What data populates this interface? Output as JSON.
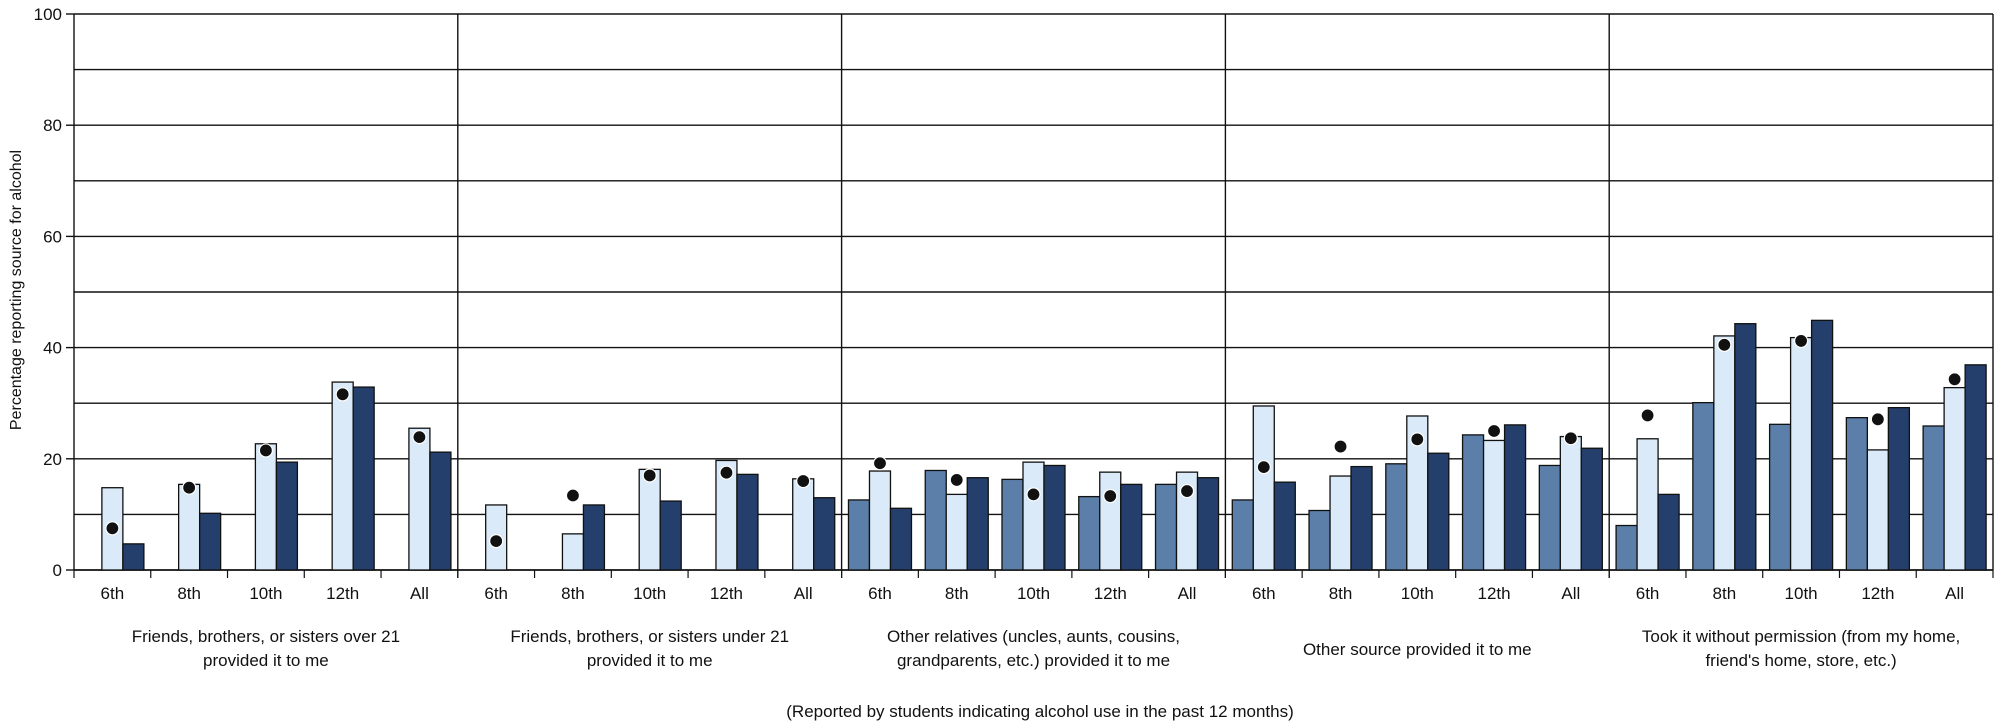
{
  "chart_data": {
    "type": "bar",
    "ylabel": "Percentage reporting source for alcohol",
    "footnote": "(Reported by students indicating alcohol use in the past 12 months)",
    "ylim": [
      0,
      100
    ],
    "yticks": [
      0,
      20,
      40,
      60,
      80,
      100
    ],
    "grid": true,
    "grades": [
      "6th",
      "8th",
      "10th",
      "12th",
      "All"
    ],
    "groups": [
      {
        "label": "Friends, brothers, or sisters over 21 provided it to me",
        "label_lines": [
          "Friends, brothers, or sisters over 21",
          "provided it to me"
        ],
        "bars": [
          [
            null,
            14.8,
            4.7
          ],
          [
            null,
            15.4,
            10.2
          ],
          [
            null,
            22.7,
            19.4
          ],
          [
            null,
            33.8,
            32.9
          ],
          [
            null,
            25.5,
            21.2
          ]
        ],
        "dots": [
          7.5,
          14.8,
          21.5,
          31.6,
          23.9
        ]
      },
      {
        "label": "Friends, brothers, or sisters under 21 provided it to me",
        "label_lines": [
          "Friends, brothers, or sisters under 21",
          "provided it to me"
        ],
        "bars": [
          [
            null,
            11.7,
            null
          ],
          [
            null,
            6.5,
            11.7
          ],
          [
            null,
            18.1,
            12.4
          ],
          [
            null,
            19.7,
            17.2
          ],
          [
            null,
            16.4,
            13.0
          ]
        ],
        "dots": [
          5.2,
          13.4,
          17.0,
          17.5,
          16.0
        ]
      },
      {
        "label": "Other relatives (uncles, aunts, cousins, grandparents, etc.) provided it to me",
        "label_lines": [
          "Other relatives (uncles, aunts, cousins,",
          "grandparents, etc.) provided it to me"
        ],
        "bars": [
          [
            12.6,
            17.8,
            11.1
          ],
          [
            17.9,
            13.6,
            16.6
          ],
          [
            16.3,
            19.4,
            18.8
          ],
          [
            13.2,
            17.6,
            15.4
          ],
          [
            15.4,
            17.6,
            16.6
          ]
        ],
        "dots": [
          19.2,
          16.2,
          13.6,
          13.3,
          14.2
        ]
      },
      {
        "label": "Other source provided it to me",
        "label_lines": [
          "Other source provided it to me"
        ],
        "bars": [
          [
            12.6,
            29.5,
            15.8
          ],
          [
            10.7,
            16.9,
            18.6
          ],
          [
            19.1,
            27.7,
            21.0
          ],
          [
            24.3,
            23.3,
            26.1
          ],
          [
            18.8,
            24.0,
            21.9
          ]
        ],
        "dots": [
          18.5,
          22.2,
          23.5,
          25.0,
          23.7
        ]
      },
      {
        "label": "Took it without permission (from my home, friend's home, store, etc.)",
        "label_lines": [
          "Took it without permission (from my home,",
          "friend's home, store, etc.)"
        ],
        "bars": [
          [
            8.0,
            23.6,
            13.6
          ],
          [
            30.1,
            42.1,
            44.3
          ],
          [
            26.2,
            41.8,
            44.9
          ],
          [
            27.4,
            21.6,
            29.2
          ],
          [
            25.9,
            32.8,
            36.9
          ]
        ],
        "dots": [
          27.8,
          40.5,
          41.2,
          27.1,
          34.3
        ]
      }
    ]
  },
  "colors": {
    "bar1": "#5b7fa8",
    "bar2": "#daeaf8",
    "bar3": "#243f6b",
    "bar_stroke": "#111111",
    "dot": "#111111",
    "grid": "#111111"
  }
}
